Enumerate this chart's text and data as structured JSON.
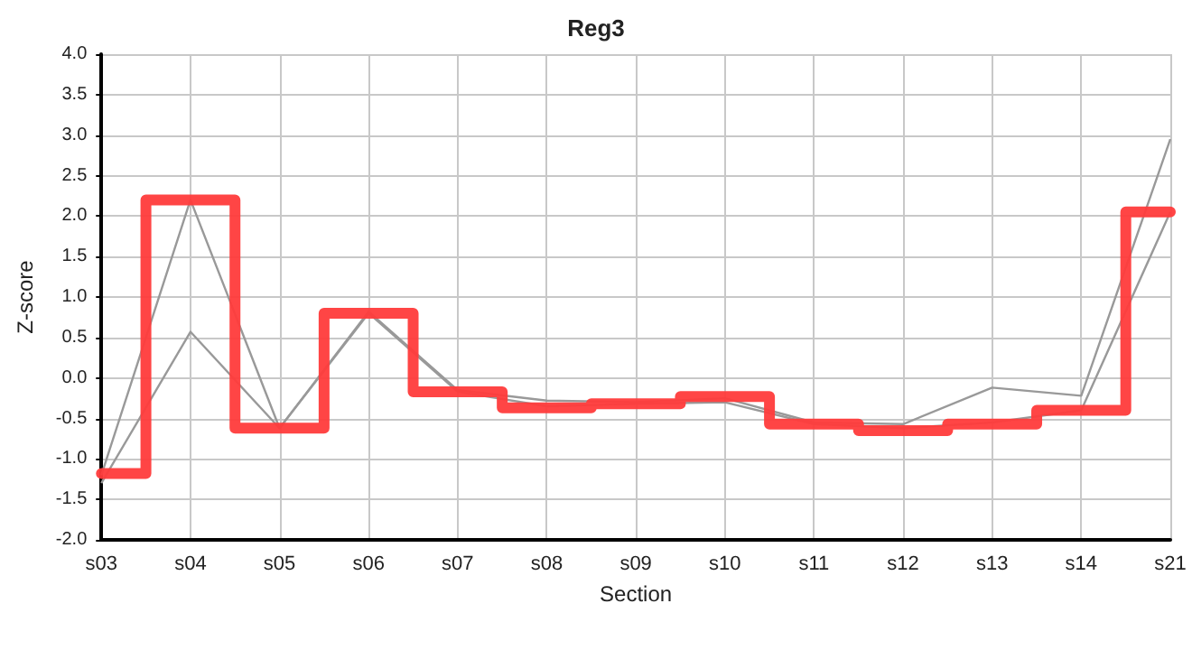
{
  "chart_data": {
    "type": "line",
    "title": "Reg3",
    "xlabel": "Section",
    "ylabel": "Z-score",
    "categories": [
      "s03",
      "s04",
      "s05",
      "s06",
      "s07",
      "s08",
      "s09",
      "s10",
      "s11",
      "s12",
      "s13",
      "s14",
      "s21"
    ],
    "series": [
      {
        "type": "line",
        "color": "#999999",
        "values": [
          -1.2,
          2.2,
          -0.62,
          0.82,
          -0.15,
          -0.28,
          -0.3,
          -0.25,
          -0.55,
          -0.57,
          -0.12,
          -0.22,
          2.95
        ]
      },
      {
        "type": "line",
        "color": "#999999",
        "values": [
          -1.3,
          0.57,
          -0.62,
          0.8,
          -0.17,
          -0.35,
          -0.32,
          -0.3,
          -0.57,
          -0.62,
          -0.55,
          -0.4,
          2.05
        ]
      },
      {
        "type": "step",
        "color": "#ff3b3b",
        "values": [
          -1.18,
          2.2,
          -0.62,
          0.8,
          -0.17,
          -0.37,
          -0.32,
          -0.23,
          -0.57,
          -0.65,
          -0.57,
          -0.4,
          2.05
        ]
      }
    ],
    "ylim": [
      -2,
      4
    ],
    "yticks": [
      {
        "value": -2,
        "label": "-2.0"
      },
      {
        "value": -1.5,
        "label": "-1.5"
      },
      {
        "value": -1,
        "label": "-1.0"
      },
      {
        "value": -0.5,
        "label": "-0.5"
      },
      {
        "value": 0,
        "label": "0.0"
      },
      {
        "value": 0.5,
        "label": "0.5"
      },
      {
        "value": 1,
        "label": "1.0"
      },
      {
        "value": 1.5,
        "label": "1.5"
      },
      {
        "value": 2,
        "label": "2.0"
      },
      {
        "value": 2.5,
        "label": "2.5"
      },
      {
        "value": 3,
        "label": "3.0"
      },
      {
        "value": 3.5,
        "label": "3.5"
      },
      {
        "value": 4,
        "label": "4.0"
      }
    ],
    "grid": true,
    "marker": "none"
  }
}
